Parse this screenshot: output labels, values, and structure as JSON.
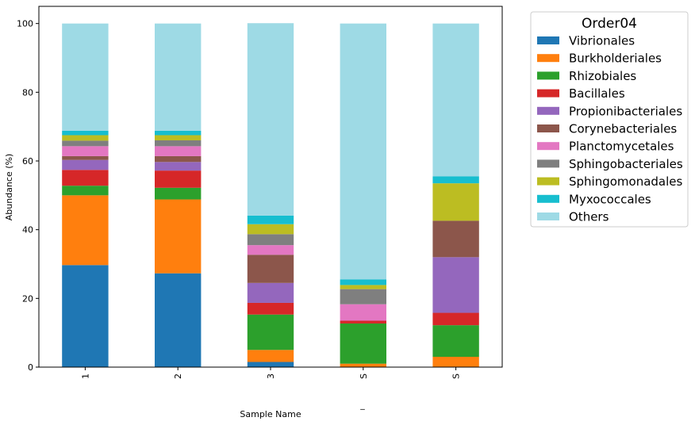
{
  "chart_data": {
    "type": "bar",
    "stacked": true,
    "categories": [
      "1",
      "2",
      "3",
      "S",
      "S"
    ],
    "xlabel": "Sample Name",
    "ylabel": "Abundance (%)",
    "ylim": [
      0,
      105
    ],
    "yticks": [
      0,
      20,
      40,
      60,
      80,
      100
    ],
    "footnote": "_",
    "legend": {
      "title": "Order04",
      "placement": "right, outside plot"
    },
    "series": [
      {
        "name": "Vibrionales",
        "color": "#1f77b4",
        "values": [
          29.7,
          27.3,
          1.5,
          0.0,
          0.0
        ]
      },
      {
        "name": "Burkholderiales",
        "color": "#ff7f0e",
        "values": [
          20.3,
          21.5,
          3.5,
          1.0,
          3.0
        ]
      },
      {
        "name": "Rhizobiales",
        "color": "#2ca02c",
        "values": [
          2.8,
          3.4,
          10.3,
          11.7,
          9.2
        ]
      },
      {
        "name": "Bacillales",
        "color": "#d62728",
        "values": [
          4.6,
          5.0,
          3.4,
          0.8,
          3.6
        ]
      },
      {
        "name": "Propionibacteriales",
        "color": "#9467bd",
        "values": [
          2.9,
          2.5,
          5.8,
          0.0,
          16.2
        ]
      },
      {
        "name": "Corynebacteriales",
        "color": "#8c564b",
        "values": [
          1.1,
          1.7,
          8.2,
          0.0,
          10.6
        ]
      },
      {
        "name": "Planctomycetales",
        "color": "#e377c2",
        "values": [
          2.9,
          2.9,
          2.8,
          4.8,
          0.0
        ]
      },
      {
        "name": "Sphingobacteriales",
        "color": "#7f7f7f",
        "values": [
          1.6,
          1.7,
          3.2,
          4.4,
          0.0
        ]
      },
      {
        "name": "Sphingomonadales",
        "color": "#bcbd22",
        "values": [
          1.6,
          1.5,
          2.9,
          1.2,
          10.9
        ]
      },
      {
        "name": "Myxococcales",
        "color": "#17becf",
        "values": [
          1.3,
          1.3,
          2.5,
          1.6,
          2.0
        ]
      },
      {
        "name": "Others",
        "color": "#9edae5",
        "values": [
          31.2,
          31.2,
          56.0,
          74.5,
          44.5
        ]
      }
    ]
  }
}
